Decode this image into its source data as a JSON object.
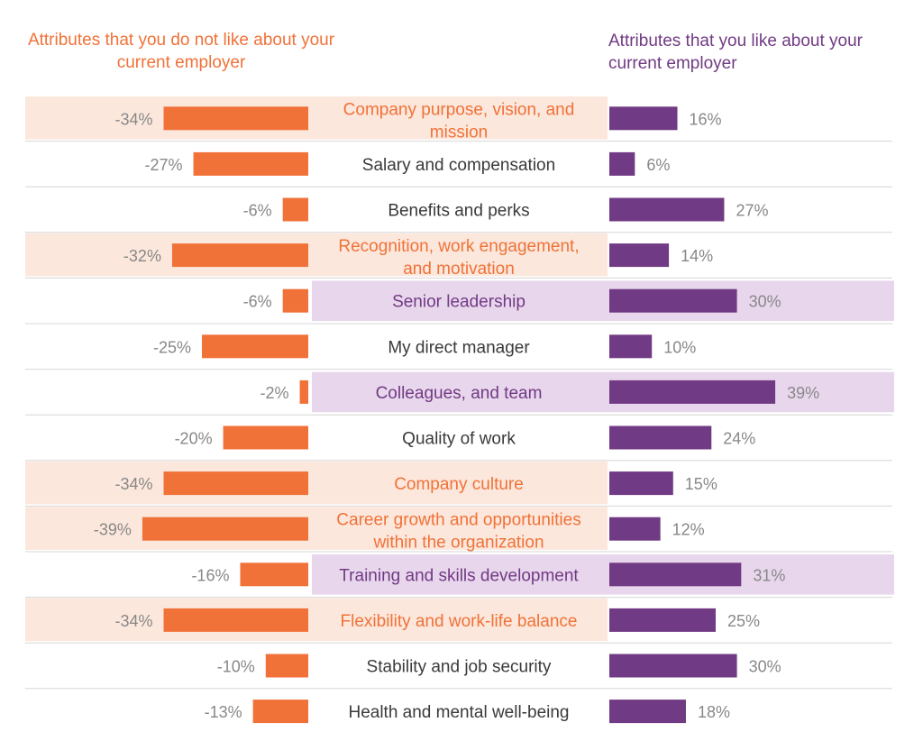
{
  "headers": {
    "left": "Attributes that you do not like about your current employer",
    "right": "Attributes that you like about your current employer"
  },
  "colors": {
    "negative": "#f07238",
    "positive": "#713a84",
    "highlight_negative_bg": "#fce7dc",
    "highlight_positive_bg": "#e8d6ec",
    "value_text": "#888888",
    "label_text": "#3a3a3a",
    "divider": "#d6d6d6"
  },
  "chart_data": {
    "type": "bar",
    "orientation": "horizontal-diverging",
    "categories": [
      "Company purpose, vision, and mission",
      "Salary and compensation",
      "Benefits and perks",
      "Recognition, work engagement, and motivation",
      "Senior leadership",
      "My direct manager",
      "Colleagues, and team",
      "Quality of work",
      "Company culture",
      "Career growth and opportunities within the organization",
      "Training and skills development",
      "Flexibility and work-life balance",
      "Stability and job security",
      "Health and mental well-being"
    ],
    "category_lines": [
      [
        "Company purpose, vision, and",
        "mission"
      ],
      [
        "Salary and compensation"
      ],
      [
        "Benefits and perks"
      ],
      [
        "Recognition, work engagement,",
        "and motivation"
      ],
      [
        "Senior leadership"
      ],
      [
        "My direct manager"
      ],
      [
        "Colleagues, and team"
      ],
      [
        "Quality of work"
      ],
      [
        "Company culture"
      ],
      [
        "Career growth and opportunities",
        "within the organization"
      ],
      [
        "Training and skills development"
      ],
      [
        "Flexibility and work-life balance"
      ],
      [
        "Stability and job security"
      ],
      [
        "Health and mental well-being"
      ]
    ],
    "series": [
      {
        "values": [
          -34,
          -27,
          -6,
          -32,
          -6,
          -25,
          -2,
          -20,
          -34,
          -39,
          -16,
          -34,
          -10,
          -13
        ],
        "labels": [
          "-34%",
          "-27%",
          "-6%",
          "-32%",
          "-6%",
          "-25%",
          "-2%",
          "-20%",
          "-34%",
          "-39%",
          "-16%",
          "-34%",
          "-10%",
          "-13%"
        ]
      },
      {
        "values": [
          16,
          6,
          27,
          14,
          30,
          10,
          39,
          24,
          15,
          12,
          31,
          25,
          30,
          18
        ],
        "labels": [
          "16%",
          "6%",
          "27%",
          "14%",
          "30%",
          "10%",
          "39%",
          "24%",
          "15%",
          "12%",
          "31%",
          "25%",
          "30%",
          "18%"
        ]
      }
    ],
    "highlight": [
      "negative",
      "none",
      "none",
      "negative",
      "positive",
      "none",
      "positive",
      "none",
      "negative",
      "negative",
      "positive",
      "negative",
      "none",
      "none"
    ],
    "unit": "%",
    "legend": "none",
    "grid": false
  }
}
